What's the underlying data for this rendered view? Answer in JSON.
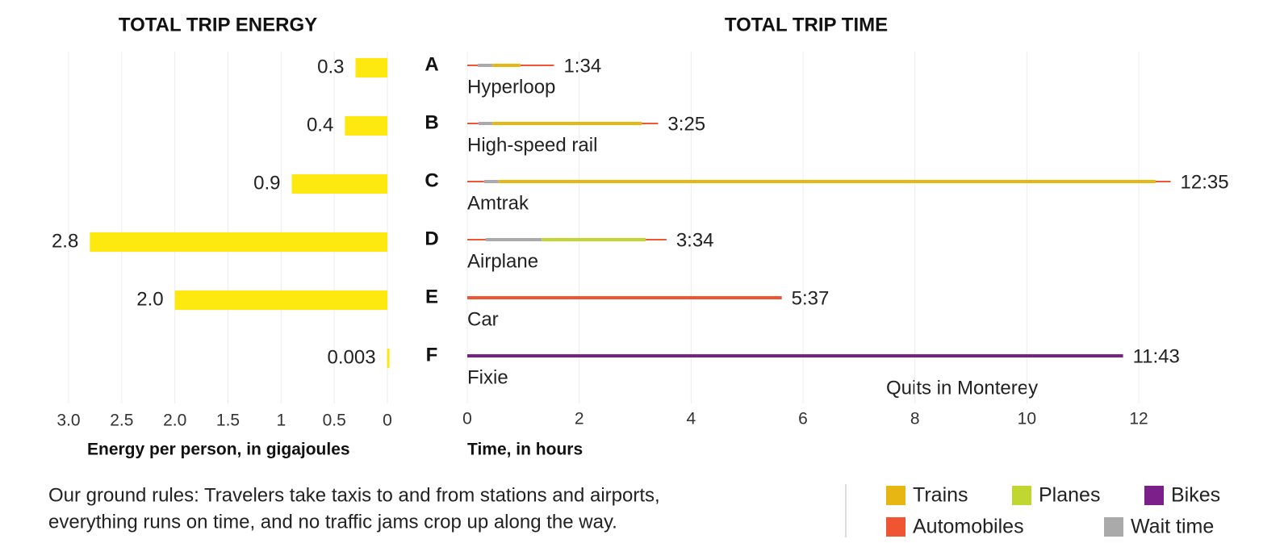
{
  "chart_data": [
    {
      "type": "bar",
      "orientation": "horizontal",
      "title": "TOTAL TRIP ENERGY",
      "x_label": "Energy per person, in gigajoules",
      "values": [
        0.3,
        0.4,
        0.9,
        2.8,
        2.0,
        0.003
      ],
      "value_labels": [
        "0.3",
        "0.4",
        "0.9",
        "2.8",
        "2.0",
        "0.003"
      ],
      "color": "#fde910",
      "xlim": [
        3,
        0
      ],
      "xticks": [
        {
          "value": 3,
          "label": "3.0"
        },
        2.5,
        {
          "value": 2,
          "label": "2.0"
        },
        1.5,
        1,
        0.5,
        0
      ],
      "grid": true
    },
    {
      "type": "stacked_bar",
      "orientation": "horizontal",
      "title": "TOTAL TRIP TIME",
      "x_label": "Time, in hours",
      "categories": [
        "A",
        "B",
        "C",
        "D",
        "E",
        "F"
      ],
      "trips": [
        {
          "name": "Hyperloop",
          "color": "#e8b613",
          "total_label": "1:34",
          "segments": [
            {
              "kind": "Automobiles",
              "value": 0.19
            },
            {
              "kind": "Wait time",
              "value": 0.26
            },
            {
              "kind": "Trains",
              "value": 0.5
            },
            {
              "kind": "Automobiles",
              "value": 0.6
            }
          ]
        },
        {
          "name": "High-speed rail",
          "color": "#e8b613",
          "total_label": "3:25",
          "segments": [
            {
              "kind": "Automobiles",
              "value": 0.2
            },
            {
              "kind": "Wait time",
              "value": 0.25
            },
            {
              "kind": "Trains",
              "value": 2.67
            },
            {
              "kind": "Automobiles",
              "value": 0.29
            }
          ]
        },
        {
          "name": "Amtrak",
          "color": "#e8b613",
          "total_label": "12:35",
          "segments": [
            {
              "kind": "Automobiles",
              "value": 0.3
            },
            {
              "kind": "Wait time",
              "value": 0.26
            },
            {
              "kind": "Trains",
              "value": 11.74
            },
            {
              "kind": "Automobiles",
              "value": 0.27
            }
          ]
        },
        {
          "name": "Airplane",
          "color": "#bfd730",
          "total_label": "3:34",
          "segments": [
            {
              "kind": "Automobiles",
              "value": 0.33
            },
            {
              "kind": "Wait time",
              "value": 1.0
            },
            {
              "kind": "Planes",
              "value": 1.86
            },
            {
              "kind": "Automobiles",
              "value": 0.37
            }
          ]
        },
        {
          "name": "Car",
          "color": "#ef5533",
          "total_label": "5:37",
          "segments": [
            {
              "kind": "Automobiles",
              "value": 5.62
            }
          ]
        },
        {
          "name": "Fixie",
          "color": "#7b1f8a",
          "total_label": "11:43",
          "segments": [
            {
              "kind": "Bikes",
              "value": 11.72
            }
          ]
        }
      ],
      "annotation": "Quits in Monterey",
      "legend": [
        {
          "name": "Trains",
          "color": "#e8b613"
        },
        {
          "name": "Planes",
          "color": "#bfd730"
        },
        {
          "name": "Bikes",
          "color": "#7b1f8a"
        },
        {
          "name": "Automobiles",
          "color": "#ef5533"
        },
        {
          "name": "Wait time",
          "color": "#aaaaaa"
        }
      ],
      "xlim": [
        0,
        13.5
      ],
      "xticks": [
        0,
        2,
        4,
        6,
        8,
        10,
        12
      ],
      "grid": true
    }
  ],
  "footer": {
    "note": [
      "Our ground rules: Travelers take taxis to and from stations and airports,",
      "everything runs on time, and no traffic jams crop up along the way."
    ]
  }
}
